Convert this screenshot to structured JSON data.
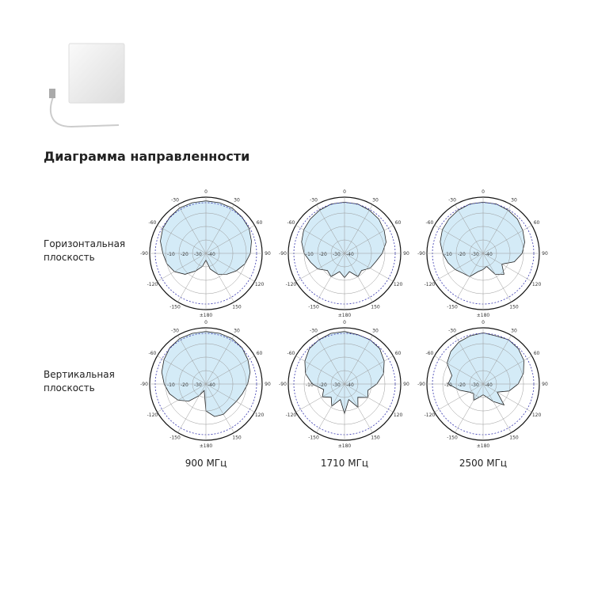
{
  "title": "Диаграмма направленности",
  "rows": [
    {
      "label_lines": [
        "Горизонтальная",
        "плоскость"
      ],
      "patterns": [
        [
          -1,
          -1,
          -1,
          -2,
          -3,
          -5,
          -7,
          -10,
          -14,
          -18,
          -22,
          -28,
          -35,
          -30,
          -25,
          -18,
          -13,
          -10,
          -8,
          -5,
          -3,
          -2,
          -1,
          -1
        ],
        [
          -2,
          -2,
          -3,
          -4,
          -6,
          -8,
          -12,
          -16,
          -18,
          -22,
          -20,
          -26,
          -22,
          -26,
          -20,
          -22,
          -17,
          -14,
          -10,
          -7,
          -5,
          -4,
          -3,
          -2
        ],
        [
          -2,
          -2,
          -3,
          -4,
          -6,
          -8,
          -11,
          -16,
          -24,
          -18,
          -22,
          -30,
          -28,
          -26,
          -20,
          -19,
          -16,
          -13,
          -10,
          -7,
          -5,
          -4,
          -3,
          -2
        ]
      ]
    },
    {
      "label_lines": [
        "Вертикальная",
        "плоскость"
      ],
      "patterns": [
        [
          -1,
          -1,
          -1,
          -2,
          -4,
          -6,
          -9,
          -12,
          -14,
          -15,
          -14,
          -15,
          -20,
          -35,
          -30,
          -22,
          -16,
          -12,
          -9,
          -6,
          -4,
          -2,
          -1,
          -1
        ],
        [
          -1,
          -2,
          -2,
          -3,
          -6,
          -10,
          -16,
          -22,
          -20,
          -26,
          -20,
          -28,
          -18,
          -28,
          -21,
          -26,
          -21,
          -24,
          -16,
          -10,
          -6,
          -3,
          -2,
          -1
        ],
        [
          -2,
          -3,
          -2,
          -3,
          -5,
          -9,
          -14,
          -20,
          -28,
          -18,
          -25,
          -30,
          -32,
          -30,
          -26,
          -30,
          -28,
          -22,
          -14,
          -16,
          -9,
          -6,
          -4,
          -3
        ]
      ]
    }
  ],
  "columns": [
    "900 МГц",
    "1710 МГц",
    "2500 МГц"
  ],
  "pattern_angles": [
    0,
    15,
    30,
    45,
    60,
    75,
    90,
    105,
    120,
    135,
    150,
    165,
    180,
    195,
    210,
    225,
    240,
    255,
    270,
    285,
    300,
    315,
    330,
    345
  ],
  "angle_ticks": [
    0,
    30,
    60,
    90,
    120,
    150,
    {
      "value": 180,
      "label": "±180"
    },
    -150,
    -120,
    -90,
    -60,
    -30
  ],
  "rlim": [
    -40,
    0
  ],
  "rticks": [
    -10,
    -20,
    -30,
    -40
  ],
  "pattern_color": "#d4ebf7"
}
